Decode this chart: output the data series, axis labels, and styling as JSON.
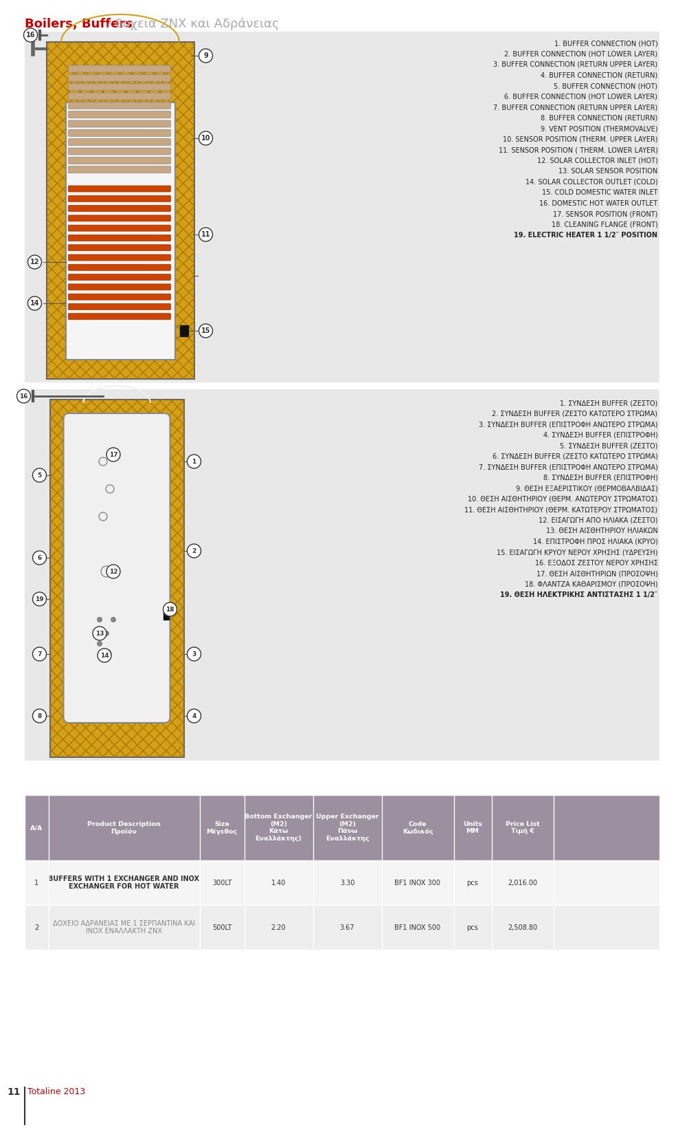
{
  "title_red": "Boilers, Buffers",
  "title_gray": " / δοχεια ΖΝΧ και Αδράνειας",
  "bg_color": "#f0f0f0",
  "white": "#ffffff",
  "red": "#cc0000",
  "dark_gray": "#555555",
  "header_purple": "#9b8fa0",
  "row1_bg": "#f5f5f5",
  "row2_bg": "#e8e8e8",
  "en_list": [
    "1. BUFFER CONNECTION (HOT)",
    "2. BUFFER CONNECTION (HOT LOWER LAYER)",
    "3. BUFFER CONNECTION (RETURN UPPER LAYER)",
    "4. BUFFER CONNECTION (RETURN)",
    "5. BUFFER CONNECTION (HOT)",
    "6. BUFFER CONNECTION (HOT LOWER LAYER)",
    "7. BUFFER CONNECTION (RETURN UPPER LAYER)",
    "8. BUFFER CONNECTION (RETURN)",
    "9. VENT POSITION (THERMOVALVE)",
    "10. SENSOR POSITION (THERM. UPPER LAYER)",
    "11. SENSOR POSITION ( THERM. LOWER LAYER)",
    "12. SOLAR COLLECTOR INLET (HOT)",
    "13. SOLAR SENSOR POSITION",
    "14. SOLAR COLLECTOR OUTLET (COLD)",
    "15. COLD DOMESTIC WATER INLET",
    "16. DOMESTIC HOT WATER OUTLET",
    "17. SENSOR POSITION (FRONT)",
    "18. CLEANING FLANGE (FRONT)",
    "19. ELECTRIC HEATER 1 1/2″ POSITION"
  ],
  "gr_list": [
    "1. ΣΥΝΔΕΣΗ BUFFER (ΖΕΣΤΟ)",
    "2. ΣΥΝΔΕΣΗ BUFFER (ΖΕΣΤΟ ΚΑΤΩΤΕΡΟ ΣΤΡΩΜΑ)",
    "3. ΣΥΝΔΕΣΗ BUFFER (ΕΠΙΣΤΡΟΦΗ ΑΝΩΤΕΡΟ ΣΤΡΩΜΑ)",
    "4. ΣΥΝΔΕΣΗ BUFFER (ΕΠΙΣΤΡΟΦΗ)",
    "5. ΣΥΝΔΕΣΗ BUFFER (ΖΕΣΤΟ)",
    "6. ΣΥΝΔΕΣΗ BUFFER (ΖΕΣΤΟ ΚΑΤΩΤΕΡΟ ΣΤΡΩΜΑ)",
    "7. ΣΥΝΔΕΣΗ BUFFER (ΕΠΙΣΤΡΟΦΗ ΑΝΩΤΕΡΟ ΣΤΡΩΜΑ)",
    "8. ΣΥΝΔΕΣΗ BUFFER (ΕΠΙΣΤΡΟΦΗ)",
    "9. ΘΕΣΗ ΕΞΑΕΡΙΣΤΙΚΟΥ (ΘΕΡΜΟΒΑΛΒΙΔΑΣ)",
    "10. ΘΕΣΗ ΑΙΣΘΗΤΗΡΙΟΥ (ΘΕΡΜ. ΑΝΩΤΕΡΟΥ ΣΤΡΩΜΑΤΟΣ)",
    "11. ΘΕΣΗ ΑΙΣΘΗΤΗΡΙΟΥ (ΘΕΡΜ. ΚΑΤΩΤΕΡΟΥ ΣΤΡΩΜΑΤΟΣ)",
    "12. ΕΙΣΑΓΩΓΗ ΑΠΟ ΗΛΙΑΚΑ (ΖΕΣΤΟ)",
    "13. ΘΕΣΗ ΑΙΣΘΗΤΗΡΙΟΥ ΗΛΙΑΚΩΝ",
    "14. ΕΠΙΣΤΡΟΦΗ ΠΡΟΣ ΗΛΙΑΚΑ (ΚΡΥΟ)",
    "15. ΕΙΣΑΓΩΓΗ ΚΡΥΟΥ ΝΕΡΟΥ ΧΡΗΣΗΣ (ΥΔΡΕΥΣΗ)",
    "16. ΕΞΟΔΟΣ ΖΕΣΤΟΥ ΝΕΡΟΥ ΧΡΗΣΗΣ",
    "17. ΘΕΣΗ ΑΙΣΘΗΤΗΡΙΩΝ (ΠΡΟΣΟΨΗ)",
    "18. ΦΛΑΝΤΖΑ ΚΑΘΑΡΙΣΜΟΥ (ΠΡΟΣΟΨΗ)",
    "19. ΘΕΣΗ ΗΛΕΚΤΡΙΚΗΣ ΑΝΤΙΣΤΑΣΗΣ 1 1/2″"
  ],
  "table_headers": [
    "A/A",
    "Product Description\nΠροϊόν",
    "Size\nΜέγεθος",
    "Bottom Exchanger\n(M2)\nΚάτω\nΕναλλάκτης)",
    "Upper Exchanger\n(M2)\nΠάνω\nΕναλλάκτης",
    "Code\nΚωδικός",
    "Units\nMM",
    "Price List\nΤιμή €"
  ],
  "table_rows": [
    [
      "1",
      "BUFFERS WITH 1 EXCHANGER AND INOX\nEXCHANGER FOR HOT WATER",
      "300LT",
      "1.40",
      "3.30",
      "BF1 INOX 300",
      "pcs",
      "2,016.00"
    ],
    [
      "2",
      "ΔΟΧΕΙΟ ΑΔΡΑΝΕΙΑΣ ΜΕ 1 ΣΕΡΠΑΝΤΙΝΑ ΚΑΙ\nΙΝΟΧ ΕΝΑΛΛΑΚΤΗ ΖΝΧ",
      "500LT",
      "2.20",
      "3.67",
      "BF1 INOX 500",
      "pcs",
      "2,508.80"
    ]
  ],
  "footer_number": "11",
  "footer_text": "Totaline 2013"
}
